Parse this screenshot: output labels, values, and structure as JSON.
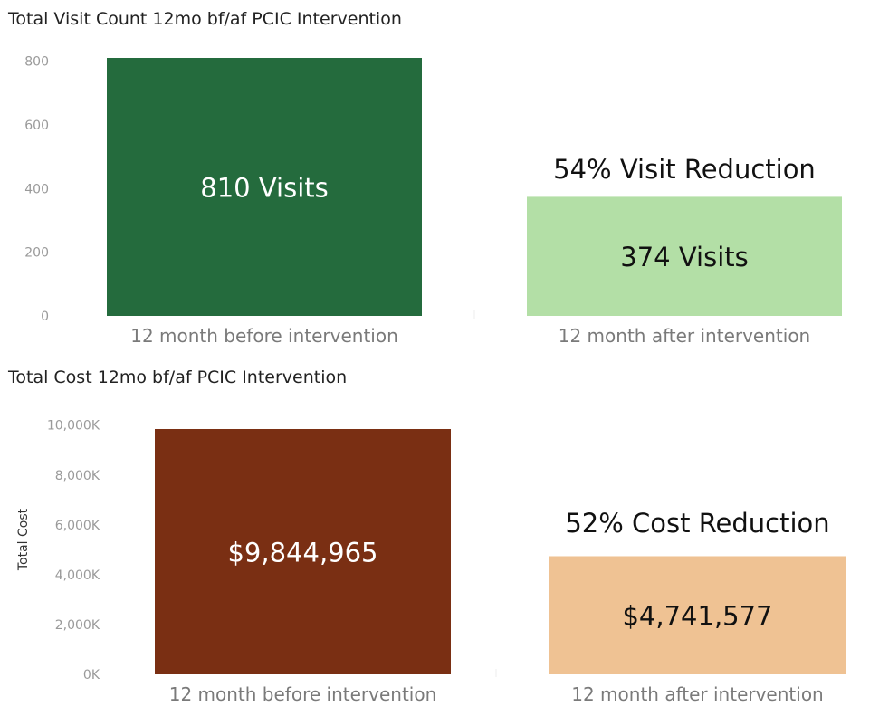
{
  "chart_data": [
    {
      "type": "bar",
      "title": "Total Visit Count 12mo bf/af PCIC Intervention",
      "ylabel": "",
      "ylim": [
        0,
        810
      ],
      "y_ticks": [
        "800",
        "600",
        "400",
        "200",
        "0"
      ],
      "y_tick_values": [
        800,
        600,
        400,
        200,
        0
      ],
      "categories": [
        "12 month before intervention",
        "12 month after intervention"
      ],
      "values": [
        810,
        374
      ],
      "data_labels": [
        "810 Visits",
        "374 Visits"
      ],
      "colors": [
        "#246b3d",
        "#b3dfa6"
      ],
      "label_colors": [
        "#ffffff",
        "#111111"
      ],
      "annotation": "54% Visit Reduction"
    },
    {
      "type": "bar",
      "title": "Total Cost 12mo bf/af PCIC Intervention",
      "ylabel": "Total Cost",
      "ylim": [
        0,
        9844965
      ],
      "y_ticks": [
        "10,000K",
        "8,000K",
        "6,000K",
        "4,000K",
        "2,000K",
        "0K"
      ],
      "y_tick_values": [
        10000000,
        8000000,
        6000000,
        4000000,
        2000000,
        0
      ],
      "categories": [
        "12 month before intervention",
        "12 month after intervention"
      ],
      "values": [
        9844965,
        4741577
      ],
      "data_labels": [
        "$9,844,965",
        "$4,741,577"
      ],
      "colors": [
        "#7a2f13",
        "#efc293"
      ],
      "label_colors": [
        "#ffffff",
        "#111111"
      ],
      "annotation": "52% Cost Reduction"
    }
  ]
}
